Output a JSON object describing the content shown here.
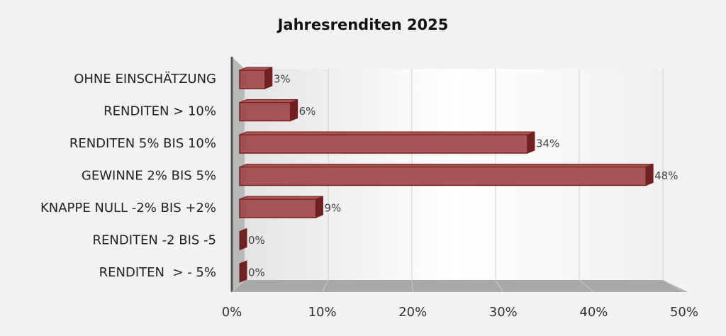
{
  "chart_data": {
    "type": "bar",
    "orientation": "horizontal",
    "title": "Jahresrenditen 2025",
    "categories": [
      "OHNE EINSCHÄTZUNG",
      "RENDITEN > 10%",
      "RENDITEN 5% BIS 10%",
      "GEWINNE 2% BIS 5%",
      "KNAPPE NULL -2% BIS +2%",
      "RENDITEN -2 BIS -5",
      "RENDITEN  > - 5%"
    ],
    "values": [
      3,
      6,
      34,
      48,
      9,
      0,
      0
    ],
    "value_labels": [
      "3%",
      "6%",
      "34%",
      "48%",
      "9%",
      "0%",
      "0%"
    ],
    "color": "#9b4444",
    "xlim": [
      0,
      50
    ],
    "xticks": [
      {
        "value": 0,
        "label": "0%"
      },
      {
        "value": 10,
        "label": "10%"
      },
      {
        "value": 20,
        "label": "20%"
      },
      {
        "value": 30,
        "label": "30%"
      },
      {
        "value": 40,
        "label": "40%"
      },
      {
        "value": 50,
        "label": "50%"
      }
    ],
    "grid": true
  }
}
